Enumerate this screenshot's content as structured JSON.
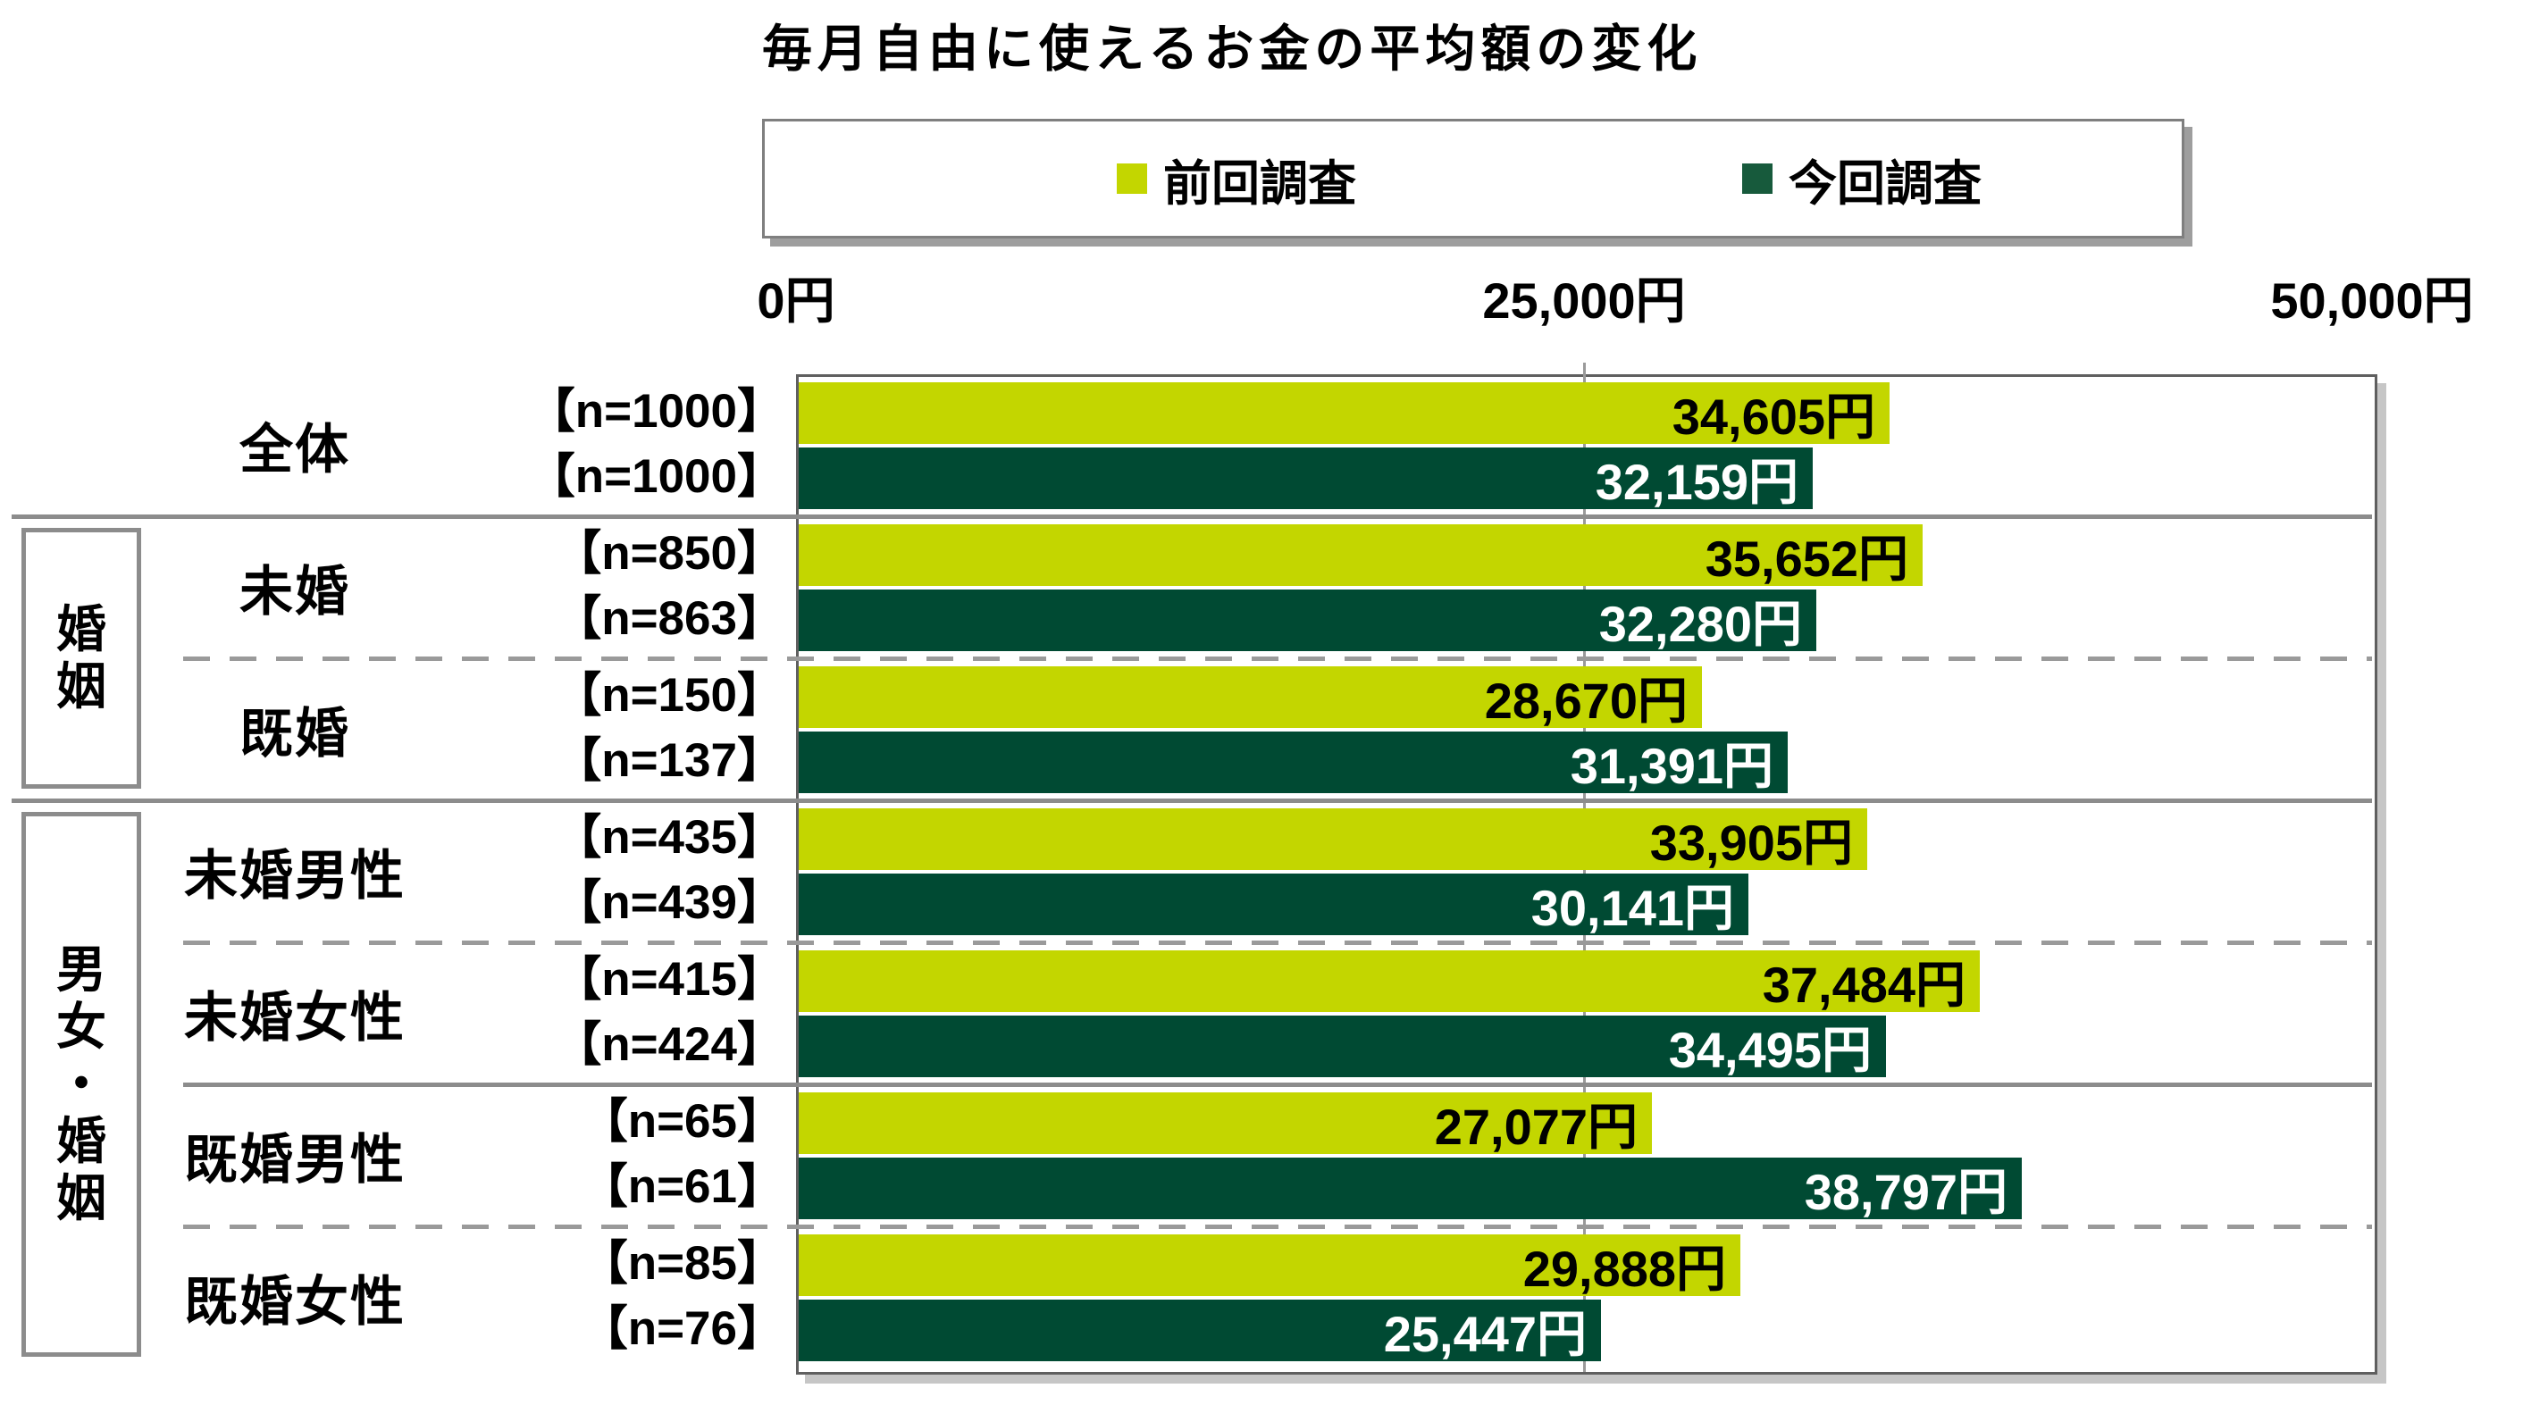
{
  "title": "毎月自由に使えるお金の平均額の変化",
  "legend": {
    "items": [
      {
        "label": "前回調査",
        "color": "#c3d600"
      },
      {
        "label": "今回調査",
        "color": "#175a3c"
      }
    ]
  },
  "axis": {
    "tick_labels": [
      "0円",
      "25,000円",
      "50,000円"
    ],
    "min": 0,
    "max": 50000
  },
  "colors": {
    "previous_bar": "#c3d600",
    "current_bar": "#004a33",
    "previous_value_text": "#000000",
    "current_value_text": "#ffffff",
    "grid": "#9a9a9a",
    "separator": "#8c8c8c"
  },
  "groups": [
    {
      "label": "婚姻",
      "chars": [
        "婚",
        "姻"
      ],
      "first_row": 1,
      "last_row": 2
    },
    {
      "label": "男女・婚姻",
      "chars": [
        "男",
        "女",
        "・",
        "婚",
        "姻"
      ],
      "first_row": 3,
      "last_row": 6
    }
  ],
  "rows": [
    {
      "category": "全体",
      "n_previous": "【n=1000】",
      "n_current": "【n=1000】",
      "previous_label": "34,605円",
      "current_label": "32,159円"
    },
    {
      "category": "未婚",
      "n_previous": "【n=850】",
      "n_current": "【n=863】",
      "previous_label": "35,652円",
      "current_label": "32,280円"
    },
    {
      "category": "既婚",
      "n_previous": "【n=150】",
      "n_current": "【n=137】",
      "previous_label": "28,670円",
      "current_label": "31,391円"
    },
    {
      "category": "未婚男性",
      "n_previous": "【n=435】",
      "n_current": "【n=439】",
      "previous_label": "33,905円",
      "current_label": "30,141円"
    },
    {
      "category": "未婚女性",
      "n_previous": "【n=415】",
      "n_current": "【n=424】",
      "previous_label": "37,484円",
      "current_label": "34,495円"
    },
    {
      "category": "既婚男性",
      "n_previous": "【n=65】",
      "n_current": "【n=61】",
      "previous_label": "27,077円",
      "current_label": "38,797円"
    },
    {
      "category": "既婚女性",
      "n_previous": "【n=85】",
      "n_current": "【n=76】",
      "previous_label": "29,888円",
      "current_label": "25,447円"
    }
  ],
  "separators": [
    {
      "after_row": 0,
      "style": "solid",
      "span": "full"
    },
    {
      "after_row": 1,
      "style": "dashed",
      "span": "inner"
    },
    {
      "after_row": 2,
      "style": "solid",
      "span": "full"
    },
    {
      "after_row": 3,
      "style": "dashed",
      "span": "inner"
    },
    {
      "after_row": 4,
      "style": "solid",
      "span": "inner"
    },
    {
      "after_row": 5,
      "style": "dashed",
      "span": "inner"
    }
  ],
  "chart_data": {
    "type": "bar",
    "orientation": "horizontal",
    "title": "毎月自由に使えるお金の平均額の変化",
    "categories": [
      "全体",
      "未婚",
      "既婚",
      "未婚男性",
      "未婚女性",
      "既婚男性",
      "既婚女性"
    ],
    "series": [
      {
        "name": "前回調査",
        "color": "#c3d600",
        "values": [
          34605,
          35652,
          28670,
          33905,
          37484,
          27077,
          29888
        ]
      },
      {
        "name": "今回調査",
        "color": "#004a33",
        "values": [
          32159,
          32280,
          31391,
          30141,
          34495,
          38797,
          25447
        ]
      }
    ],
    "sample_sizes": {
      "前回調査": [
        1000,
        850,
        150,
        435,
        415,
        65,
        85
      ],
      "今回調査": [
        1000,
        863,
        137,
        439,
        424,
        61,
        76
      ]
    },
    "unit": "円",
    "xlim": [
      0,
      50000
    ],
    "x_ticks": [
      0,
      25000,
      50000
    ],
    "grid": "vertical line at 25,000 only",
    "legend_position": "top",
    "group_brackets": [
      {
        "label": "婚姻",
        "rows": [
          1,
          2
        ]
      },
      {
        "label": "男女・婚姻",
        "rows": [
          3,
          4,
          5,
          6
        ]
      }
    ]
  }
}
